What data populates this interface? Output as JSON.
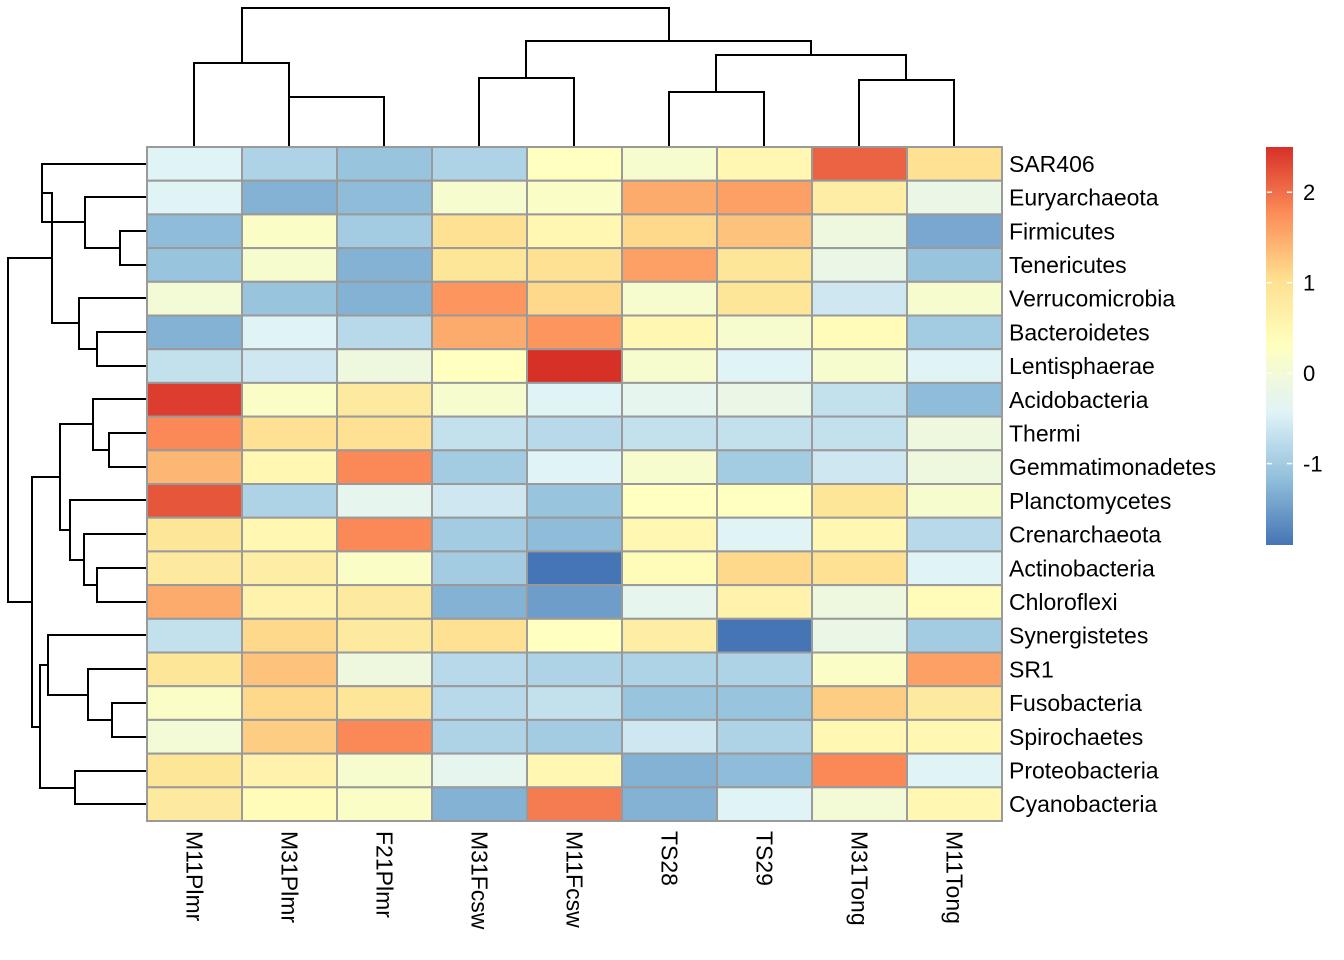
{
  "chart_data": {
    "type": "heatmap",
    "title": "",
    "columns": [
      "M11Plmr",
      "M31Plmr",
      "F21Plmr",
      "M31Fcsw",
      "M11Fcsw",
      "TS28",
      "TS29",
      "M31Tong",
      "M11Tong"
    ],
    "rows": [
      "SAR406",
      "Euryarchaeota",
      "Firmicutes",
      "Tenericutes",
      "Verrucomicrobia",
      "Bacteroidetes",
      "Lentisphaerae",
      "Acidobacteria",
      "Thermi",
      "Gemmatimonadetes",
      "Planctomycetes",
      "Crenarchaeota",
      "Actinobacteria",
      "Chloroflexi",
      "Synergistetes",
      "SR1",
      "Fusobacteria",
      "Spirochaetes",
      "Proteobacteria",
      "Cyanobacteria"
    ],
    "values": [
      [
        -0.4,
        -0.9,
        -1.1,
        -0.9,
        0.3,
        0.1,
        0.5,
        2.1,
        1.0
      ],
      [
        -0.4,
        -1.3,
        -1.2,
        0.1,
        0.2,
        1.5,
        1.6,
        0.7,
        -0.2
      ],
      [
        -1.2,
        0.2,
        -1.0,
        1.0,
        0.5,
        1.1,
        1.3,
        -0.1,
        -1.4
      ],
      [
        -1.1,
        0.1,
        -1.3,
        0.9,
        1.0,
        1.6,
        0.9,
        -0.2,
        -1.1
      ],
      [
        0.0,
        -1.1,
        -1.3,
        1.7,
        1.1,
        0.1,
        0.9,
        -0.6,
        0.1
      ],
      [
        -1.3,
        -0.4,
        -0.8,
        1.5,
        1.7,
        0.5,
        0.1,
        0.4,
        -1.0
      ],
      [
        -0.7,
        -0.6,
        -0.1,
        0.3,
        2.5,
        0.1,
        -0.4,
        0.1,
        -0.4
      ],
      [
        2.4,
        0.2,
        0.8,
        0.1,
        -0.4,
        -0.3,
        -0.2,
        -0.7,
        -1.2
      ],
      [
        1.8,
        1.0,
        1.0,
        -0.7,
        -0.8,
        -0.7,
        -0.7,
        -0.7,
        -0.1
      ],
      [
        1.4,
        0.5,
        1.8,
        -1.0,
        -0.4,
        0.1,
        -1.0,
        -0.6,
        -0.1
      ],
      [
        2.2,
        -0.9,
        -0.3,
        -0.6,
        -1.1,
        0.3,
        0.3,
        0.9,
        0.1
      ],
      [
        0.9,
        0.5,
        1.8,
        -1.0,
        -1.2,
        0.5,
        -0.4,
        0.5,
        -0.8
      ],
      [
        0.8,
        0.7,
        0.2,
        -1.0,
        -1.9,
        0.4,
        1.1,
        1.0,
        -0.4
      ],
      [
        1.5,
        0.6,
        0.8,
        -1.3,
        -1.5,
        -0.3,
        0.6,
        -0.1,
        0.4
      ],
      [
        -0.7,
        1.1,
        0.8,
        1.0,
        0.3,
        0.7,
        -1.9,
        -0.2,
        -1.0
      ],
      [
        0.9,
        1.3,
        -0.1,
        -0.8,
        -0.9,
        -0.9,
        -0.9,
        0.2,
        1.6
      ],
      [
        0.2,
        1.1,
        0.9,
        -0.8,
        -0.7,
        -1.1,
        -1.1,
        1.2,
        0.8
      ],
      [
        0.0,
        1.2,
        1.8,
        -0.9,
        -1.0,
        -0.6,
        -0.9,
        0.5,
        0.5
      ],
      [
        0.9,
        0.6,
        0.1,
        -0.3,
        0.5,
        -1.3,
        -1.2,
        1.8,
        -0.4
      ],
      [
        0.8,
        0.4,
        0.2,
        -1.3,
        1.9,
        -1.3,
        -0.4,
        0.0,
        0.5
      ]
    ],
    "color_scale": {
      "min": -1.9,
      "max": 2.5,
      "stops": [
        "#4575b4",
        "#91bfdb",
        "#e0f3f8",
        "#ffffbf",
        "#fee090",
        "#fc8d59",
        "#d73027"
      ],
      "ticks": [
        -1,
        0,
        1,
        2
      ],
      "tick_labels": [
        "-1",
        "0",
        "1",
        "2"
      ]
    },
    "legend_position": "right",
    "row_dendrogram": true,
    "col_dendrogram": true
  }
}
